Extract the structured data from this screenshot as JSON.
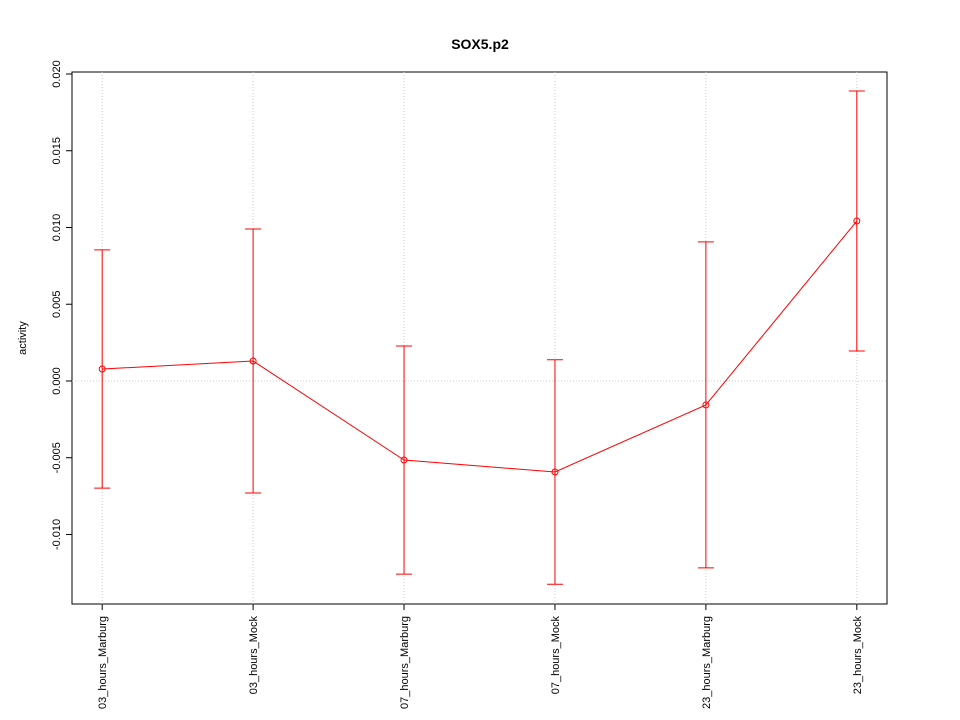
{
  "chart_data": {
    "type": "line",
    "title": "SOX5.p2",
    "y_label": "activity",
    "categories": [
      "03_hours_Marburg",
      "03_hours_Mock",
      "07_hours_Marburg",
      "07_hours_Mock",
      "23_hours_Marburg",
      "23_hours_Mock"
    ],
    "series": [
      {
        "color": "#ff0000",
        "values": [
          0.00078,
          0.0013,
          -0.00515,
          -0.00593,
          -0.00156,
          0.01042
        ],
        "errors": [
          0.00776,
          0.0086,
          0.00743,
          0.00731,
          0.01062,
          0.00847
        ]
      }
    ],
    "ylim": [
      -0.01453,
      0.02013
    ],
    "yticks": [
      {
        "value": -0.01,
        "label": "-0.010"
      },
      -0.005,
      {
        "value": 0,
        "label": "0.000"
      },
      0.005,
      {
        "value": 0.01,
        "label": "0.010"
      },
      0.015,
      {
        "value": 0.02,
        "label": "0.020"
      }
    ],
    "grid": true
  }
}
